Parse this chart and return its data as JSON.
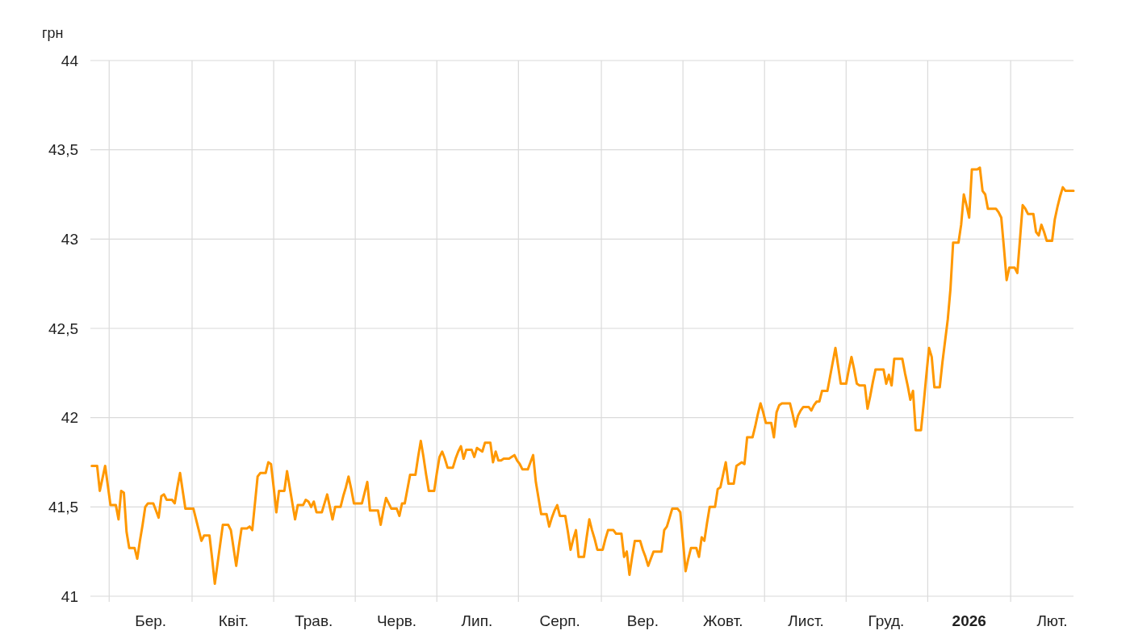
{
  "chart_data": {
    "type": "line",
    "ylabel": "грн",
    "categories": [
      null,
      null,
      null,
      null,
      null,
      null,
      null,
      null,
      null,
      null,
      null,
      null,
      null,
      null,
      null,
      null,
      null,
      null,
      null,
      null,
      null,
      null,
      "Бер.",
      null,
      null,
      null,
      null,
      null,
      null,
      null,
      null,
      null,
      null,
      null,
      null,
      null,
      null,
      null,
      null,
      null,
      null,
      null,
      null,
      null,
      null,
      null,
      null,
      null,
      null,
      null,
      null,
      null,
      null,
      "Квіт.",
      null,
      null,
      null,
      null,
      null,
      null,
      null,
      null,
      null,
      null,
      null,
      null,
      null,
      null,
      null,
      null,
      null,
      null,
      null,
      null,
      null,
      null,
      null,
      null,
      null,
      null,
      null,
      null,
      null,
      "Трав.",
      null,
      null,
      null,
      null,
      null,
      null,
      null,
      null,
      null,
      null,
      null,
      null,
      null,
      null,
      null,
      null,
      null,
      null,
      null,
      null,
      null,
      null,
      null,
      null,
      null,
      null,
      null,
      null,
      null,
      null,
      "Черв.",
      null,
      null,
      null,
      null,
      null,
      null,
      null,
      null,
      null,
      null,
      null,
      null,
      null,
      null,
      null,
      null,
      null,
      null,
      null,
      null,
      null,
      null,
      null,
      null,
      null,
      null,
      null,
      null,
      null,
      "Лип.",
      null,
      null,
      null,
      null,
      null,
      null,
      null,
      null,
      null,
      null,
      null,
      null,
      null,
      null,
      null,
      null,
      null,
      null,
      null,
      null,
      null,
      null,
      null,
      null,
      null,
      null,
      null,
      null,
      null,
      null,
      "Серп.",
      null,
      null,
      null,
      null,
      null,
      null,
      null,
      null,
      null,
      null,
      null,
      null,
      null,
      null,
      null,
      null,
      null,
      null,
      null,
      null,
      null,
      null,
      null,
      null,
      null,
      null,
      null,
      null,
      null,
      null,
      "Вер.",
      null,
      null,
      null,
      null,
      null,
      null,
      null,
      null,
      null,
      null,
      null,
      null,
      null,
      null,
      null,
      null,
      null,
      null,
      null,
      null,
      null,
      null,
      null,
      null,
      null,
      null,
      null,
      null,
      null,
      "Жовт.",
      null,
      null,
      null,
      null,
      null,
      null,
      null,
      null,
      null,
      null,
      null,
      null,
      null,
      null,
      null,
      null,
      null,
      null,
      null,
      null,
      null,
      null,
      null,
      null,
      null,
      null,
      null,
      null,
      null,
      null,
      "Лист.",
      null,
      null,
      null,
      null,
      null,
      null,
      null,
      null,
      null,
      null,
      null,
      null,
      null,
      null,
      null,
      null,
      null,
      null,
      null,
      null,
      null,
      null,
      null,
      null,
      null,
      null,
      null,
      null,
      null,
      "Груд.",
      null,
      null,
      null,
      null,
      null,
      null,
      null,
      null,
      null,
      null,
      null,
      null,
      null,
      null,
      null,
      null,
      null,
      null,
      null,
      null,
      null,
      null,
      null,
      null,
      null,
      null,
      null,
      null,
      null,
      null,
      "2026",
      null,
      null,
      null,
      null,
      null,
      null,
      null,
      null,
      null,
      null,
      null,
      null,
      null,
      null,
      null,
      null,
      null,
      null,
      null,
      null,
      null,
      null,
      null,
      null,
      null,
      null,
      null,
      null,
      null,
      null,
      "Лют.",
      null,
      null,
      null,
      null,
      null,
      null,
      null,
      null
    ],
    "ylim": [
      41,
      44
    ],
    "yticks": [
      41,
      {
        "value": 41.5,
        "label": "41,5"
      },
      42,
      {
        "value": 42.5,
        "label": "42,5"
      },
      43,
      {
        "value": 43.5,
        "label": "43,5"
      },
      44
    ],
    "grid": true,
    "line_style": "solid",
    "series": [
      {
        "color": "#ff9800",
        "values": [
          41.73,
          41.73,
          41.73,
          41.59,
          41.66,
          41.73,
          41.62,
          41.51,
          41.51,
          41.51,
          41.43,
          41.59,
          41.58,
          41.36,
          41.27,
          41.27,
          41.27,
          41.21,
          41.31,
          41.4,
          41.5,
          41.52,
          41.52,
          41.52,
          41.48,
          41.44,
          41.56,
          41.57,
          41.54,
          41.54,
          41.54,
          41.52,
          41.61,
          41.69,
          41.59,
          41.49,
          41.49,
          41.49,
          41.49,
          41.43,
          41.37,
          41.31,
          41.34,
          41.34,
          41.34,
          41.21,
          41.07,
          41.18,
          41.29,
          41.4,
          41.4,
          41.4,
          41.37,
          41.27,
          41.17,
          41.28,
          41.38,
          41.38,
          41.38,
          41.39,
          41.37,
          41.52,
          41.67,
          41.69,
          41.69,
          41.69,
          41.75,
          41.74,
          41.61,
          41.47,
          41.59,
          41.59,
          41.59,
          41.7,
          41.61,
          41.52,
          41.43,
          41.51,
          41.51,
          41.51,
          41.54,
          41.53,
          41.5,
          41.53,
          41.47,
          41.47,
          41.47,
          41.52,
          41.57,
          41.5,
          41.43,
          41.5,
          41.5,
          41.5,
          41.56,
          41.61,
          41.67,
          41.6,
          41.52,
          41.52,
          41.52,
          41.52,
          41.58,
          41.64,
          41.48,
          41.48,
          41.48,
          41.48,
          41.4,
          41.48,
          41.55,
          41.52,
          41.49,
          41.49,
          41.49,
          41.45,
          41.52,
          41.52,
          41.6,
          41.68,
          41.68,
          41.68,
          41.78,
          41.87,
          41.78,
          41.68,
          41.59,
          41.59,
          41.59,
          41.69,
          41.78,
          41.81,
          41.77,
          41.72,
          41.72,
          41.72,
          41.77,
          41.81,
          41.84,
          41.77,
          41.82,
          41.82,
          41.82,
          41.78,
          41.83,
          41.82,
          41.81,
          41.86,
          41.86,
          41.86,
          41.75,
          41.81,
          41.76,
          41.76,
          41.77,
          41.77,
          41.77,
          41.78,
          41.79,
          41.76,
          41.74,
          41.71,
          41.71,
          41.71,
          41.75,
          41.79,
          41.64,
          41.55,
          41.46,
          41.46,
          41.46,
          41.39,
          41.44,
          41.48,
          41.51,
          41.45,
          41.45,
          41.45,
          41.36,
          41.26,
          41.32,
          41.37,
          41.22,
          41.22,
          41.22,
          41.33,
          41.43,
          41.37,
          41.32,
          41.26,
          41.26,
          41.26,
          41.32,
          41.37,
          41.37,
          41.37,
          41.35,
          41.35,
          41.35,
          41.22,
          41.25,
          41.12,
          41.22,
          41.31,
          41.31,
          41.31,
          41.26,
          41.22,
          41.17,
          41.21,
          41.25,
          41.25,
          41.25,
          41.25,
          41.37,
          41.39,
          41.44,
          41.49,
          41.49,
          41.49,
          41.47,
          41.31,
          41.14,
          41.21,
          41.27,
          41.27,
          41.27,
          41.22,
          41.33,
          41.31,
          41.41,
          41.5,
          41.5,
          41.5,
          41.6,
          41.61,
          41.68,
          41.75,
          41.63,
          41.63,
          41.63,
          41.73,
          41.74,
          41.75,
          41.74,
          41.89,
          41.89,
          41.89,
          41.95,
          42.02,
          42.08,
          42.03,
          41.97,
          41.97,
          41.97,
          41.89,
          42.03,
          42.07,
          42.08,
          42.08,
          42.08,
          42.08,
          42.02,
          41.95,
          42.01,
          42.04,
          42.06,
          42.06,
          42.06,
          42.04,
          42.07,
          42.09,
          42.09,
          42.15,
          42.15,
          42.15,
          42.23,
          42.31,
          42.39,
          42.29,
          42.19,
          42.19,
          42.19,
          42.27,
          42.34,
          42.27,
          42.19,
          42.18,
          42.18,
          42.18,
          42.05,
          42.12,
          42.2,
          42.27,
          42.27,
          42.27,
          42.27,
          42.19,
          42.24,
          42.18,
          42.33,
          42.33,
          42.33,
          42.33,
          42.25,
          42.18,
          42.1,
          42.15,
          41.93,
          41.93,
          41.93,
          42.08,
          42.24,
          42.39,
          42.34,
          42.17,
          42.17,
          42.17,
          42.31,
          42.43,
          42.55,
          42.72,
          42.98,
          42.98,
          42.98,
          43.08,
          43.25,
          43.19,
          43.12,
          43.39,
          43.39,
          43.39,
          43.4,
          43.27,
          43.25,
          43.17,
          43.17,
          43.17,
          43.17,
          43.15,
          43.12,
          42.95,
          42.77,
          42.84,
          42.84,
          42.84,
          42.81,
          43.0,
          43.19,
          43.17,
          43.14,
          43.14,
          43.14,
          43.04,
          43.02,
          43.08,
          43.04,
          42.99,
          42.99,
          42.99,
          43.11,
          43.18,
          43.24,
          43.29,
          43.27,
          43.27,
          43.27,
          43.27
        ]
      }
    ]
  }
}
